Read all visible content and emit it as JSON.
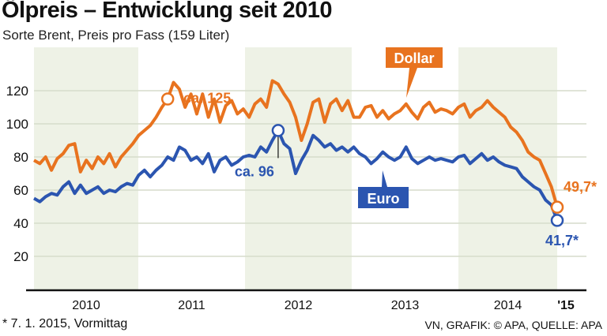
{
  "title": "Ölpreis – Entwicklung seit 2010",
  "subtitle": "Sorte Brent, Preis pro Fass (159 Liter)",
  "footnote": "* 7. 1. 2015, Vormittag",
  "source": "VN, GRAFIK: © APA, QUELLE: APA",
  "chart_data": {
    "type": "line",
    "title": "Ölpreis – Entwicklung seit 2010",
    "subtitle": "Sorte Brent, Preis pro Fass (159 Liter)",
    "x_tick_labels": [
      "2010",
      "2011",
      "2012",
      "2013",
      "2014",
      "'15"
    ],
    "y_ticks": [
      20,
      40,
      60,
      80,
      100,
      120
    ],
    "ylim": [
      0,
      140
    ],
    "grid": true,
    "x_start": "2010-01",
    "x_step": "month",
    "series": [
      {
        "name": "Dollar",
        "color": "#e8731f",
        "values": [
          78,
          76,
          80,
          72,
          79,
          82,
          87,
          88,
          71,
          78,
          73,
          80,
          76,
          82,
          74,
          80,
          84,
          88,
          93,
          96,
          99,
          104,
          110,
          115,
          125,
          121,
          110,
          118,
          106,
          118,
          104,
          115,
          101,
          111,
          114,
          106,
          109,
          104,
          112,
          115,
          110,
          126,
          124,
          118,
          113,
          104,
          90,
          100,
          113,
          115,
          101,
          112,
          115,
          108,
          114,
          104,
          104,
          110,
          111,
          104,
          108,
          103,
          106,
          108,
          112,
          107,
          103,
          110,
          113,
          107,
          109,
          108,
          106,
          110,
          112,
          104,
          108,
          110,
          114,
          110,
          107,
          104,
          98,
          95,
          90,
          83,
          80,
          78,
          70,
          62,
          49.7
        ]
      },
      {
        "name": "Euro",
        "color": "#2b55b0",
        "values": [
          55,
          53,
          56,
          58,
          57,
          62,
          65,
          58,
          63,
          58,
          60,
          62,
          58,
          60,
          59,
          62,
          64,
          63,
          69,
          72,
          68,
          72,
          75,
          80,
          78,
          86,
          84,
          78,
          80,
          76,
          82,
          71,
          78,
          80,
          75,
          77,
          80,
          81,
          80,
          86,
          83,
          90,
          96,
          88,
          85,
          70,
          78,
          84,
          93,
          90,
          86,
          88,
          84,
          86,
          83,
          86,
          82,
          80,
          76,
          79,
          83,
          80,
          78,
          80,
          86,
          79,
          76,
          78,
          80,
          78,
          79,
          78,
          77,
          80,
          81,
          76,
          79,
          82,
          78,
          80,
          77,
          75,
          74,
          73,
          68,
          65,
          62,
          60,
          54,
          51,
          41.7
        ]
      }
    ],
    "annotations": [
      {
        "text": "ca. 125",
        "series": "Dollar"
      },
      {
        "text": "ca. 96",
        "series": "Euro"
      },
      {
        "text": "49,7*",
        "series": "Dollar"
      },
      {
        "text": "41,7*",
        "series": "Euro"
      }
    ],
    "legend": [
      "Dollar",
      "Euro"
    ]
  }
}
